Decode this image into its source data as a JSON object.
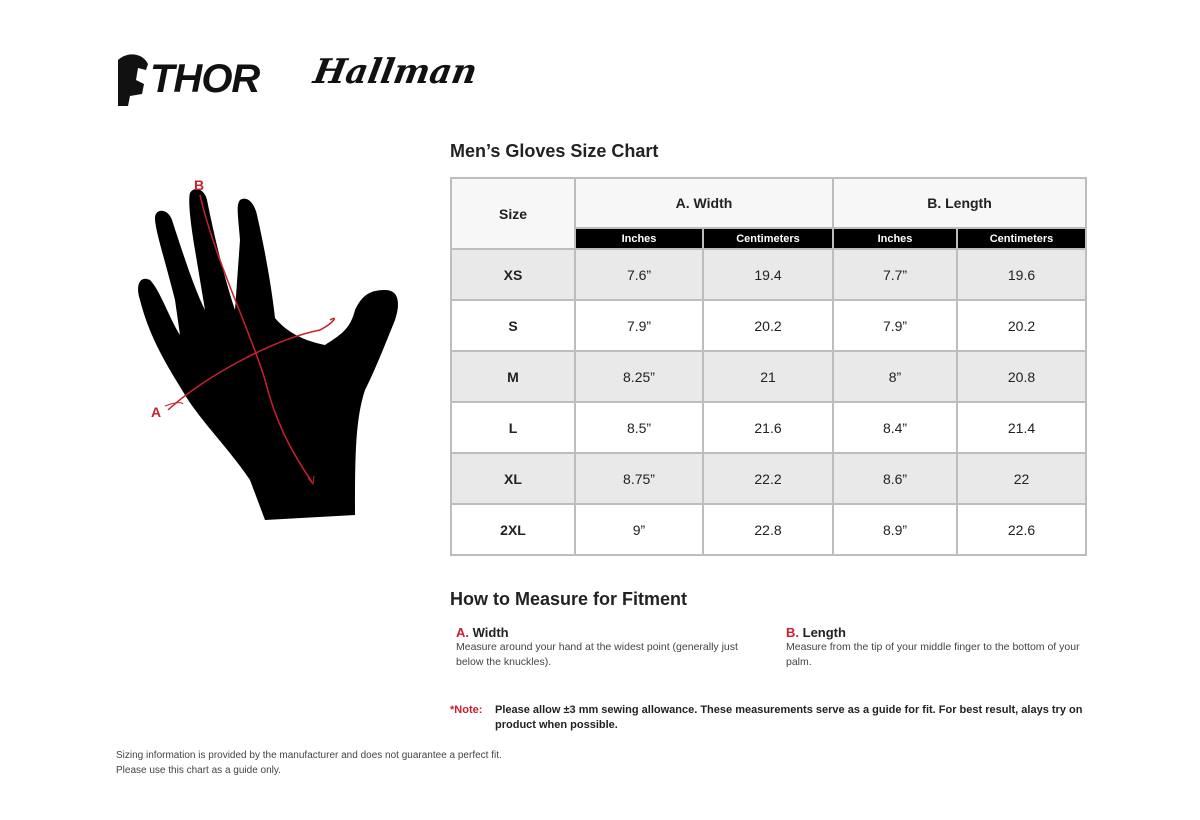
{
  "logos": {
    "thor": "THOR",
    "hallman": "Hallman"
  },
  "title": "Men’s Gloves Size Chart",
  "diagram": {
    "label_a": "A",
    "label_b": "B"
  },
  "table": {
    "size_header": "Size",
    "group_a": "A. Width",
    "group_b": "B. Length",
    "sub": [
      "Inches",
      "Centimeters",
      "Inches",
      "Centimeters"
    ],
    "rows": [
      {
        "size": "XS",
        "w_in": "7.6”",
        "w_cm": "19.4",
        "l_in": "7.7”",
        "l_cm": "19.6"
      },
      {
        "size": "S",
        "w_in": "7.9”",
        "w_cm": "20.2",
        "l_in": "7.9”",
        "l_cm": "20.2"
      },
      {
        "size": "M",
        "w_in": "8.25”",
        "w_cm": "21",
        "l_in": "8”",
        "l_cm": "20.8"
      },
      {
        "size": "L",
        "w_in": "8.5”",
        "w_cm": "21.6",
        "l_in": "8.4”",
        "l_cm": "21.4"
      },
      {
        "size": "XL",
        "w_in": "8.75”",
        "w_cm": "22.2",
        "l_in": "8.6”",
        "l_cm": "22"
      },
      {
        "size": "2XL",
        "w_in": "9”",
        "w_cm": "22.8",
        "l_in": "8.9”",
        "l_cm": "22.6"
      }
    ]
  },
  "measure": {
    "title": "How to Measure for Fitment",
    "a": {
      "letter": "A.",
      "name": "Width",
      "desc": "Measure around your hand at the widest point (generally just below the knuckles)."
    },
    "b": {
      "letter": "B.",
      "name": "Length",
      "desc": "Measure from the tip of your middle finger to the bottom of your palm."
    }
  },
  "note": {
    "label": "*Note:",
    "text": "Please allow ±3 mm sewing allowance. These measurements serve as a guide for fit. For best result, alays try on product when possible."
  },
  "footer": [
    "Sizing information is provided by the manufacturer and does not guarantee a perfect fit.",
    "Please use this chart as a guide only."
  ],
  "colors": {
    "accent": "#c8202f",
    "header_black": "#000000",
    "row_gray": "#e9e9e9"
  }
}
